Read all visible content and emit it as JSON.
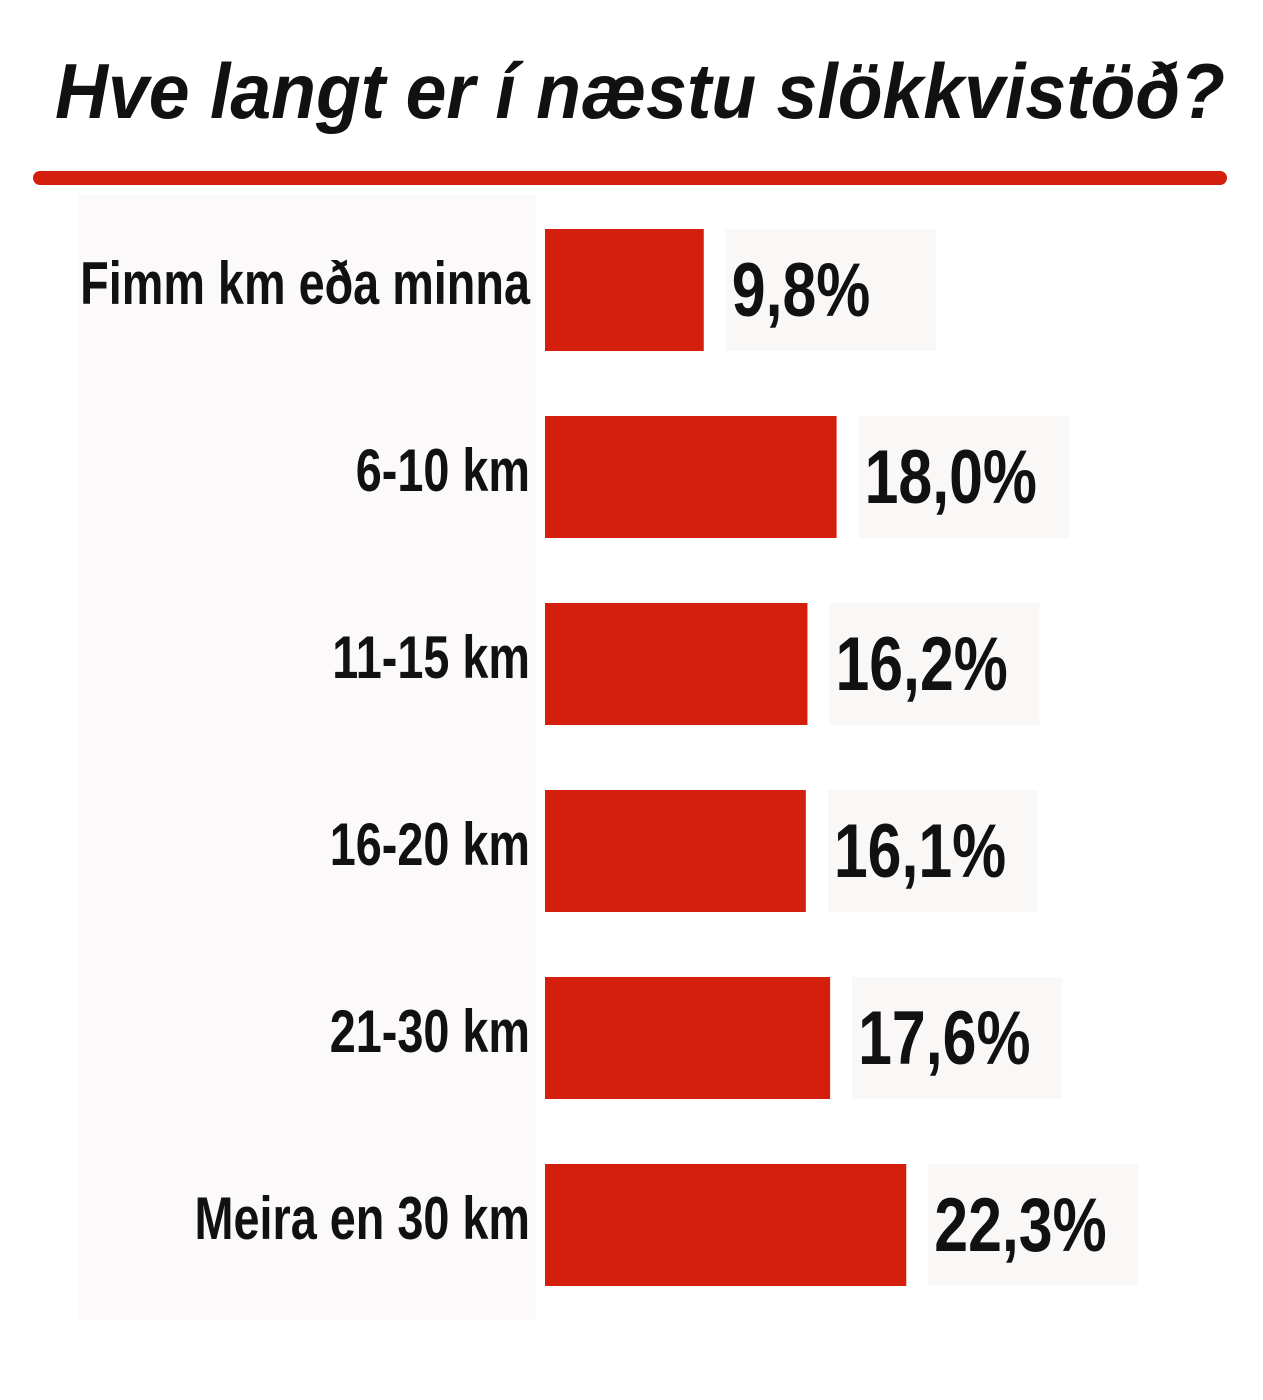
{
  "chart_data": {
    "type": "bar",
    "orientation": "horizontal",
    "title": "Hve langt er í næstu slökkvistöð?",
    "categories": [
      "Fimm km eða minna",
      "6-10 km",
      "11-15 km",
      "16-20 km",
      "21-30 km",
      "Meira en 30 km"
    ],
    "values": [
      9.8,
      18.0,
      16.2,
      16.1,
      17.6,
      22.3
    ],
    "value_labels": [
      "9,8%",
      "18,0%",
      "16,2%",
      "16,1%",
      "17,6%",
      "22,3%"
    ],
    "color": "#d41f0d"
  }
}
